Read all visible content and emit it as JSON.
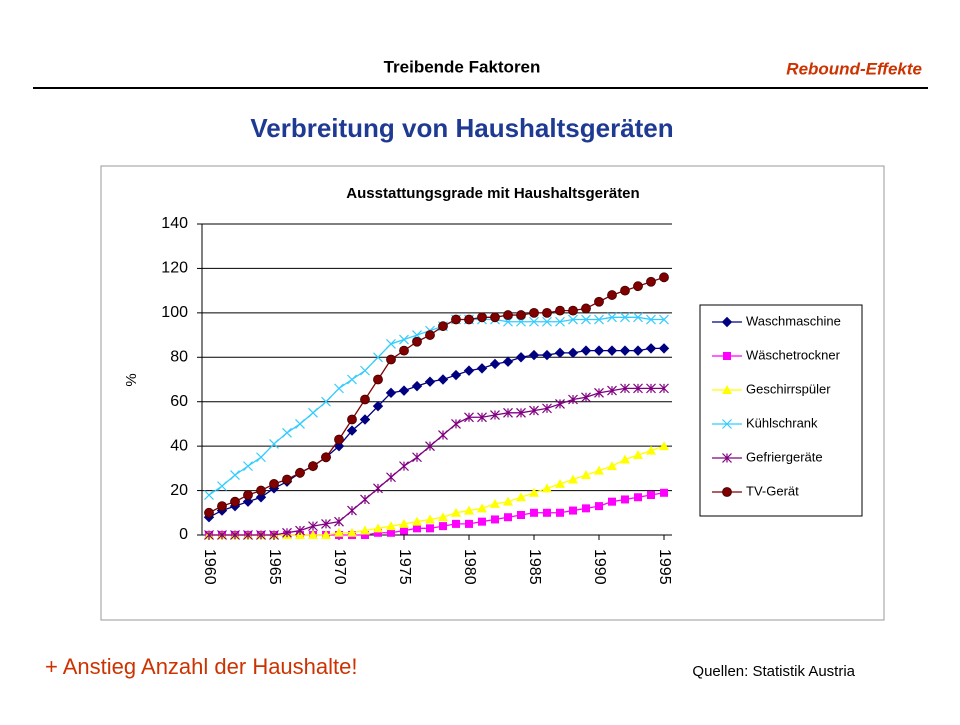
{
  "header": {
    "section": "Treibende Faktoren",
    "topic": "Rebound-Effekte"
  },
  "slide_title": "Verbreitung von Haushaltsgeräten",
  "chart_data": {
    "type": "line",
    "title": "Ausstattungsgrade mit Haushaltsgeräten",
    "y_label": "%",
    "x": [
      1960,
      1961,
      1962,
      1963,
      1964,
      1965,
      1966,
      1967,
      1968,
      1969,
      1970,
      1971,
      1972,
      1973,
      1974,
      1975,
      1976,
      1977,
      1978,
      1979,
      1980,
      1981,
      1982,
      1983,
      1984,
      1985,
      1986,
      1987,
      1988,
      1989,
      1990,
      1991,
      1992,
      1993,
      1994,
      1995
    ],
    "xlim": [
      1960,
      1995
    ],
    "xticks": [
      1960,
      1965,
      1970,
      1975,
      1980,
      1985,
      1990,
      1995
    ],
    "ylim": [
      0,
      140
    ],
    "yticks": [
      0,
      20,
      40,
      60,
      80,
      100,
      120,
      140
    ],
    "grid": true,
    "legend": "right",
    "series": [
      {
        "name": "Waschmaschine",
        "color": "#000080",
        "marker": "diamond",
        "values": [
          8,
          11,
          13,
          15,
          17,
          21,
          24,
          28,
          31,
          35,
          40,
          47,
          52,
          58,
          64,
          65,
          67,
          69,
          70,
          72,
          74,
          75,
          77,
          78,
          80,
          81,
          81,
          82,
          82,
          83,
          83,
          83,
          83,
          83,
          84,
          84
        ]
      },
      {
        "name": "Wäschetrockner",
        "color": "#ff00ff",
        "marker": "square",
        "values": [
          0,
          0,
          0,
          0,
          0,
          0,
          0,
          0,
          0,
          0,
          0,
          0,
          0,
          1,
          1,
          2,
          3,
          3,
          4,
          5,
          5,
          6,
          7,
          8,
          9,
          10,
          10,
          10,
          11,
          12,
          13,
          15,
          16,
          17,
          18,
          19
        ]
      },
      {
        "name": "Geschirrspüler",
        "color": "#ffff00",
        "marker": "triangle",
        "values": [
          0,
          0,
          0,
          0,
          0,
          0,
          0,
          0,
          0,
          0,
          1,
          1,
          2,
          3,
          4,
          5,
          6,
          7,
          8,
          10,
          11,
          12,
          14,
          15,
          17,
          19,
          21,
          23,
          25,
          27,
          29,
          31,
          34,
          36,
          38,
          40
        ]
      },
      {
        "name": "Kühlschrank",
        "color": "#33ccff",
        "marker": "x",
        "values": [
          18,
          22,
          27,
          31,
          35,
          41,
          46,
          50,
          55,
          60,
          66,
          70,
          74,
          80,
          86,
          88,
          90,
          92,
          94,
          97,
          97,
          97,
          97,
          96,
          96,
          96,
          96,
          96,
          97,
          97,
          97,
          98,
          98,
          98,
          97,
          97
        ]
      },
      {
        "name": "Gefriergeräte",
        "color": "#800080",
        "marker": "star",
        "values": [
          0,
          0,
          0,
          0,
          0,
          0,
          1,
          2,
          4,
          5,
          6,
          11,
          16,
          21,
          26,
          31,
          35,
          40,
          45,
          50,
          53,
          53,
          54,
          55,
          55,
          56,
          57,
          59,
          61,
          62,
          64,
          65,
          66,
          66,
          66,
          66
        ]
      },
      {
        "name": "TV-Gerät",
        "color": "#800000",
        "marker": "circle",
        "values": [
          10,
          13,
          15,
          18,
          20,
          23,
          25,
          28,
          31,
          35,
          43,
          52,
          61,
          70,
          79,
          83,
          87,
          90,
          94,
          97,
          97,
          98,
          98,
          99,
          99,
          100,
          100,
          101,
          101,
          102,
          105,
          108,
          110,
          112,
          114,
          116
        ]
      }
    ]
  },
  "footer": {
    "note": "+ Anstieg Anzahl der Haushalte!",
    "source": "Quellen: Statistik Austria"
  }
}
